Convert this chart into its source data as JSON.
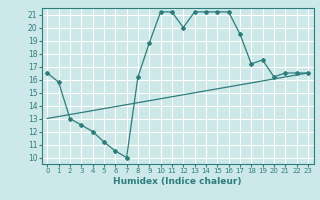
{
  "title": "",
  "xlabel": "Humidex (Indice chaleur)",
  "ylabel": "",
  "bg_color": "#cde8e8",
  "line_color": "#2d7d7d",
  "grid_color": "#ffffff",
  "xlim": [
    -0.5,
    23.5
  ],
  "ylim": [
    9.5,
    21.5
  ],
  "yticks": [
    10,
    11,
    12,
    13,
    14,
    15,
    16,
    17,
    18,
    19,
    20,
    21
  ],
  "xticks": [
    0,
    1,
    2,
    3,
    4,
    5,
    6,
    7,
    8,
    9,
    10,
    11,
    12,
    13,
    14,
    15,
    16,
    17,
    18,
    19,
    20,
    21,
    22,
    23
  ],
  "curve_x": [
    0,
    1,
    2,
    3,
    4,
    5,
    6,
    7,
    8,
    9,
    10,
    11,
    12,
    13,
    14,
    15,
    16,
    17,
    18,
    19,
    20,
    21,
    22,
    23
  ],
  "curve_y": [
    16.5,
    15.8,
    13.0,
    12.5,
    12.0,
    11.2,
    10.5,
    10.0,
    16.2,
    18.8,
    21.2,
    21.2,
    20.0,
    21.2,
    21.2,
    21.2,
    21.2,
    19.5,
    17.2,
    17.5,
    16.2,
    16.5,
    16.5,
    16.5
  ],
  "trend_x": [
    0,
    23
  ],
  "trend_y": [
    13.0,
    16.5
  ]
}
